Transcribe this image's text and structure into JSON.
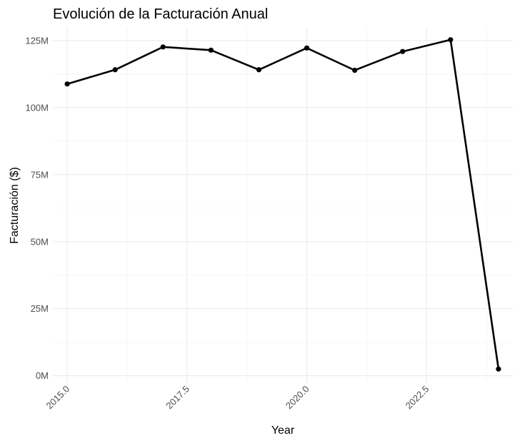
{
  "chart_data": {
    "type": "line",
    "title": "Evolución de la Facturación Anual",
    "xlabel": "Year",
    "ylabel": "Facturación ($)",
    "xlim": [
      2014.7,
      2024.3
    ],
    "ylim": [
      -3000000,
      130000000
    ],
    "x_ticks": [
      2015.0,
      2017.5,
      2020.0,
      2022.5
    ],
    "x_tick_labels": [
      "2015.0",
      "2017.5",
      "2020.0",
      "2022.5"
    ],
    "y_ticks": [
      0,
      25000000,
      50000000,
      75000000,
      100000000,
      125000000
    ],
    "y_tick_labels": [
      "0M",
      "25M",
      "50M",
      "75M",
      "100M",
      "125M"
    ],
    "grid": true,
    "legend": "none",
    "series": [
      {
        "color": "#000000",
        "x": [
          2015,
          2016,
          2017,
          2018,
          2019,
          2020,
          2021,
          2022,
          2023,
          2024
        ],
        "values": [
          108800000,
          114100000,
          122600000,
          121400000,
          114100000,
          122200000,
          113900000,
          120900000,
          125300000,
          2500000
        ]
      }
    ]
  }
}
